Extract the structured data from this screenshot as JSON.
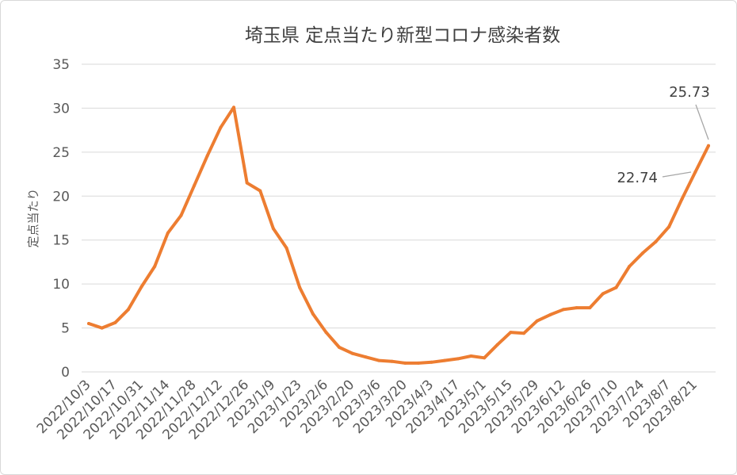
{
  "chart_data": {
    "type": "line",
    "title": "埼玉県 定点当たり新型コロナ感染者数",
    "ylabel": "定点当たり",
    "xlabel": "",
    "ylim": [
      0,
      35
    ],
    "yticks": [
      "0",
      "5",
      "10",
      "15",
      "20",
      "25",
      "30",
      "35"
    ],
    "grid": true,
    "legend": "none",
    "line_color": "#ed7d31",
    "grid_color": "#d9d9d9",
    "x_tick_labels": [
      "2022/10/3",
      "2022/10/17",
      "2022/10/31",
      "2022/11/14",
      "2022/11/28",
      "2022/12/12",
      "2022/12/26",
      "2023/1/9",
      "2023/1/23",
      "2023/2/6",
      "2023/2/20",
      "2023/3/6",
      "2023/3/20",
      "2023/4/3",
      "2023/4/17",
      "2023/5/1",
      "2023/5/15",
      "2023/5/29",
      "2023/6/12",
      "2023/6/26",
      "2023/7/10",
      "2023/7/24",
      "2023/8/7",
      "2023/8/21"
    ],
    "series": [
      {
        "values": [
          5.5,
          5.0,
          5.6,
          7.1,
          9.7,
          12.0,
          15.8,
          17.8,
          21.2,
          24.6,
          27.8,
          30.1,
          21.5,
          20.6,
          16.3,
          14.1,
          9.6,
          6.6,
          4.5,
          2.8,
          2.1,
          1.7,
          1.3,
          1.2,
          1.0,
          1.0,
          1.1,
          1.3,
          1.5,
          1.8,
          1.6,
          3.1,
          4.5,
          4.4,
          5.8,
          6.5,
          7.1,
          7.3,
          7.3,
          8.9,
          9.6,
          12.0,
          13.5,
          14.8,
          16.5,
          19.7,
          22.74,
          25.73
        ]
      }
    ],
    "annotations": [
      {
        "label": "22.74",
        "index": 46
      },
      {
        "label": "25.73",
        "index": 47
      }
    ]
  }
}
